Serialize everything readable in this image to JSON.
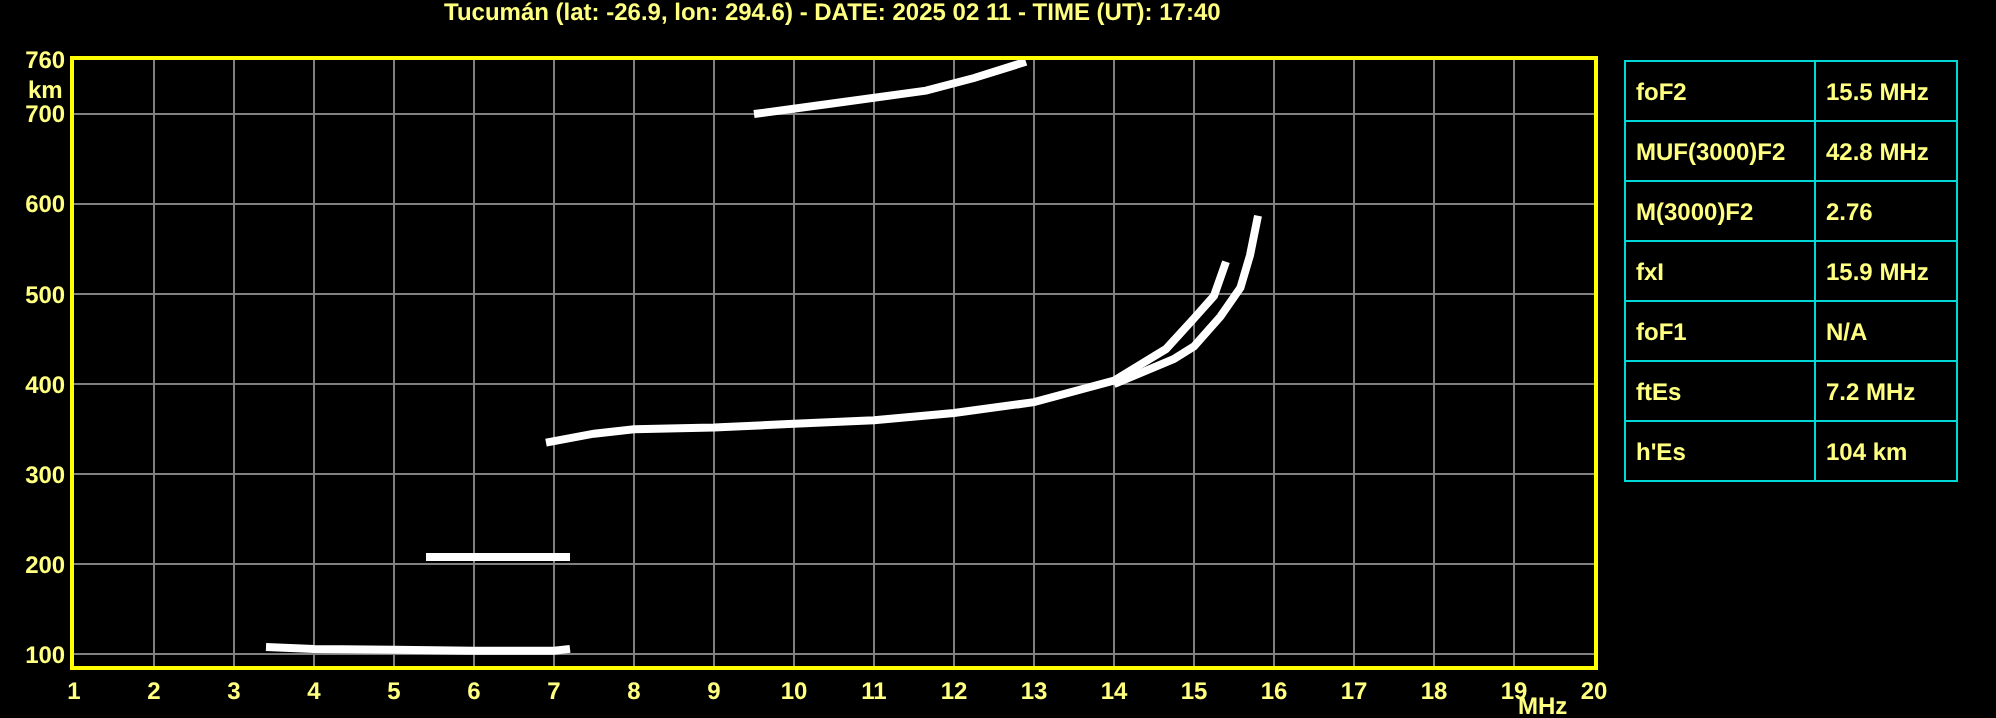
{
  "chart_data": [
    {
      "type": "line",
      "title": "Tucumán (lat: -26.9, lon: 294.6) - DATE: 2025 02 11 - TIME (UT): 17:40",
      "xlabel": "MHz",
      "ylabel": "km",
      "xlim": [
        1,
        20
      ],
      "xticks": [
        1,
        2,
        3,
        4,
        5,
        6,
        7,
        8,
        9,
        10,
        11,
        12,
        13,
        14,
        15,
        16,
        17,
        18,
        19,
        20
      ],
      "ylim": [
        87,
        760
      ],
      "yticks": [
        100,
        200,
        300,
        400,
        500,
        600,
        700,
        760
      ],
      "grid": true,
      "marker": "none",
      "line_style": "solid",
      "series": [
        {
          "color": "#ffffff",
          "x": [
            3.4,
            4,
            5,
            6,
            7,
            7.2
          ],
          "values": [
            108,
            106,
            105,
            104,
            104,
            106
          ]
        },
        {
          "color": "#ffffff",
          "x": [
            5.4,
            6.3,
            7.2
          ],
          "values": [
            208,
            208,
            208
          ]
        },
        {
          "color": "#ffffff",
          "x": [
            6.9,
            7.2,
            7.5,
            8,
            9,
            10,
            11,
            12,
            13,
            14,
            14.65,
            15,
            15.25,
            15.4
          ],
          "values": [
            335,
            340,
            345,
            350,
            352,
            356,
            360,
            368,
            380,
            404,
            439,
            473,
            498,
            536
          ]
        },
        {
          "color": "#ffffff",
          "x": [
            14,
            14.75,
            15,
            15.33,
            15.58,
            15.7,
            15.8
          ],
          "values": [
            400,
            428,
            442,
            475,
            507,
            543,
            587
          ]
        },
        {
          "color": "#ffffff",
          "x": [
            9.5,
            10.5,
            11.65,
            12.25,
            12.9
          ],
          "values": [
            700,
            712,
            726,
            740,
            758
          ]
        }
      ]
    },
    {
      "type": "other",
      "categories": [
        "foF2",
        "MUF(3000)F2",
        "M(3000)F2",
        "fxI",
        "foF1",
        "ftEs",
        "h'Es"
      ],
      "value_labels": [
        "15.5 MHz",
        "42.8 MHz",
        "2.76",
        "15.9 MHz",
        "N/A",
        "7.2 MHz",
        "104 km"
      ]
    }
  ]
}
